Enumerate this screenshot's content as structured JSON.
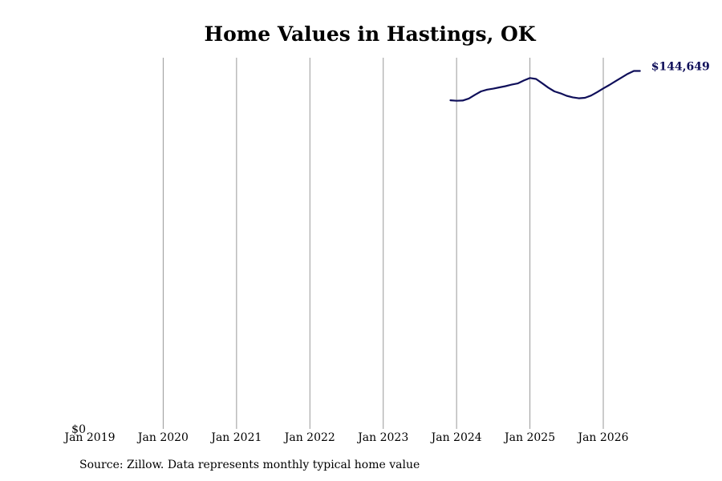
{
  "chart_data": {
    "type": "line",
    "title": "Home Values in Hastings, OK",
    "xlabel": "",
    "ylabel": "",
    "x_ticks": [
      "Jan 2019",
      "Jan 2020",
      "Jan 2021",
      "Jan 2022",
      "Jan 2023",
      "Jan 2024",
      "Jan 2025",
      "Jan 2026"
    ],
    "y_ticks": [
      "$0"
    ],
    "ylim": [
      0,
      150000
    ],
    "xlim": [
      "2019-01",
      "2026-09"
    ],
    "grid": "vertical",
    "line_color": "#0f0f5a",
    "grid_color": "#999999",
    "end_label": "$144,649",
    "series": [
      {
        "x": [
          "2023-12",
          "2024-01",
          "2024-02",
          "2024-03",
          "2024-04",
          "2024-05",
          "2024-06",
          "2024-07",
          "2024-08",
          "2024-09",
          "2024-10",
          "2024-11",
          "2024-12",
          "2025-01",
          "2025-02",
          "2025-03",
          "2025-04",
          "2025-05",
          "2025-06",
          "2025-07",
          "2025-08",
          "2025-09",
          "2025-10",
          "2025-11",
          "2025-12",
          "2026-01",
          "2026-02",
          "2026-03",
          "2026-04",
          "2026-05",
          "2026-06",
          "2026-07"
        ],
        "y": [
          132800,
          132600,
          132700,
          133500,
          135000,
          136400,
          137100,
          137500,
          138000,
          138500,
          139100,
          139600,
          140800,
          141800,
          141400,
          139700,
          137900,
          136400,
          135600,
          134600,
          134000,
          133600,
          133800,
          134700,
          136100,
          137600,
          139000,
          140500,
          142000,
          143500,
          144649,
          144649
        ]
      }
    ]
  },
  "footer": {
    "source": "Source: Zillow. Data represents monthly typical home value"
  }
}
